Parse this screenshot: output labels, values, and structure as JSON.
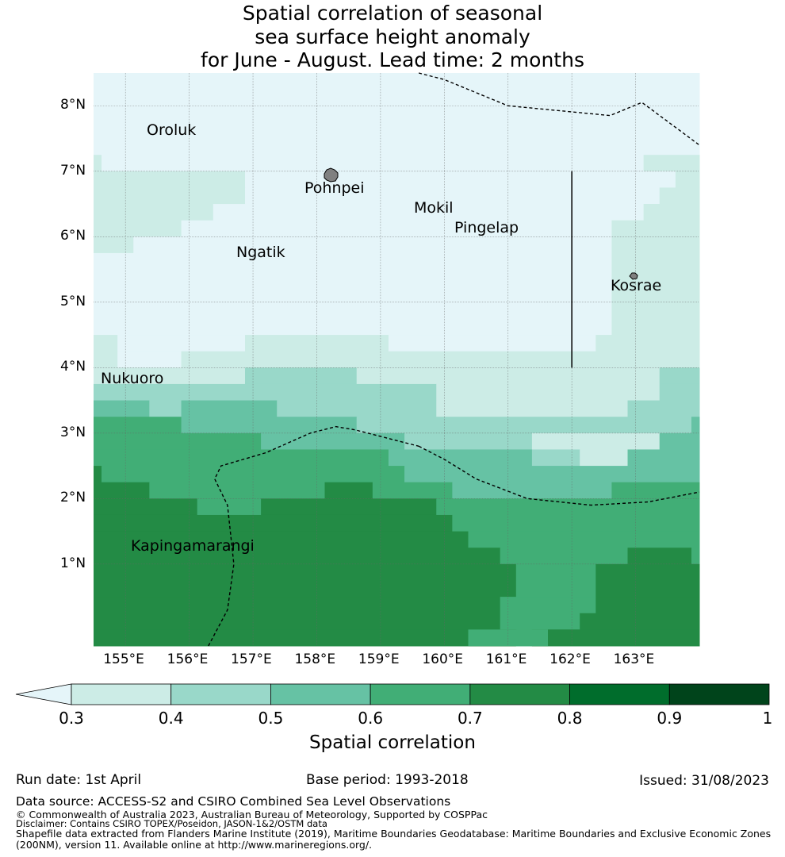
{
  "title": {
    "line1": "Spatial correlation of seasonal",
    "line2": "sea surface height anomaly",
    "line3": "for June - August. Lead time: 2 months"
  },
  "map": {
    "lon_range": [
      154.5,
      164.0
    ],
    "lat_range": [
      -0.25,
      8.5
    ],
    "grid_step_deg": 0.25,
    "x_ticks": [
      "155°E",
      "156°E",
      "157°E",
      "158°E",
      "159°E",
      "160°E",
      "161°E",
      "162°E",
      "163°E"
    ],
    "y_ticks": [
      "8°N",
      "7°N",
      "6°N",
      "5°N",
      "4°N",
      "3°N",
      "2°N",
      "1°N"
    ],
    "places": [
      {
        "name": "Oroluk"
      },
      {
        "name": "Pohnpei"
      },
      {
        "name": "Mokil"
      },
      {
        "name": "Pingelap"
      },
      {
        "name": "Ngatik"
      },
      {
        "name": "Kosrae"
      },
      {
        "name": "Nukuoro"
      },
      {
        "name": "Kapingamarangi"
      }
    ],
    "correlation_rows_description": "row = north edge latitude, segments of [lon_start, lon_end, level]",
    "correlation_rows": [
      {
        "lat": 8.5,
        "segs": [
          [
            154.5,
            164.0,
            0
          ]
        ]
      },
      {
        "lat": 7.25,
        "segs": [
          [
            154.5,
            154.625,
            1
          ],
          [
            154.625,
            163.125,
            0
          ],
          [
            163.125,
            164.0,
            1
          ]
        ]
      },
      {
        "lat": 7.0,
        "segs": [
          [
            154.5,
            156.875,
            1
          ],
          [
            156.875,
            163.625,
            0
          ],
          [
            163.625,
            164.0,
            1
          ]
        ]
      },
      {
        "lat": 6.75,
        "segs": [
          [
            154.5,
            156.875,
            1
          ],
          [
            156.875,
            163.375,
            0
          ],
          [
            163.375,
            164.0,
            1
          ]
        ]
      },
      {
        "lat": 6.5,
        "segs": [
          [
            154.5,
            156.375,
            1
          ],
          [
            156.375,
            163.125,
            0
          ],
          [
            163.125,
            164.0,
            1
          ]
        ]
      },
      {
        "lat": 6.25,
        "segs": [
          [
            154.5,
            155.875,
            1
          ],
          [
            155.875,
            162.625,
            0
          ],
          [
            162.625,
            164.0,
            1
          ]
        ]
      },
      {
        "lat": 6.0,
        "segs": [
          [
            154.5,
            155.125,
            1
          ],
          [
            155.125,
            162.625,
            0
          ],
          [
            162.625,
            164.0,
            1
          ]
        ]
      },
      {
        "lat": 5.75,
        "segs": [
          [
            154.5,
            162.625,
            0
          ],
          [
            162.625,
            164.0,
            1
          ]
        ]
      },
      {
        "lat": 4.5,
        "segs": [
          [
            154.5,
            154.875,
            1
          ],
          [
            154.875,
            156.875,
            0
          ],
          [
            156.875,
            159.125,
            1
          ],
          [
            159.125,
            162.375,
            0
          ],
          [
            162.375,
            164.0,
            1
          ]
        ]
      },
      {
        "lat": 4.25,
        "segs": [
          [
            154.5,
            154.875,
            1
          ],
          [
            154.875,
            155.875,
            0
          ],
          [
            155.875,
            162.375,
            1
          ],
          [
            162.375,
            164.0,
            1
          ]
        ]
      },
      {
        "lat": 4.0,
        "segs": [
          [
            154.5,
            156.875,
            1
          ],
          [
            156.875,
            158.625,
            2
          ],
          [
            158.625,
            163.375,
            1
          ],
          [
            163.375,
            164.0,
            2
          ]
        ]
      },
      {
        "lat": 3.75,
        "segs": [
          [
            154.5,
            159.875,
            2
          ],
          [
            159.875,
            163.375,
            1
          ],
          [
            163.375,
            164.0,
            2
          ]
        ]
      },
      {
        "lat": 3.5,
        "segs": [
          [
            154.5,
            155.375,
            3
          ],
          [
            155.375,
            155.875,
            2
          ],
          [
            155.875,
            157.375,
            3
          ],
          [
            157.375,
            159.875,
            2
          ],
          [
            159.875,
            162.875,
            1
          ],
          [
            162.875,
            164.0,
            2
          ]
        ]
      },
      {
        "lat": 3.25,
        "segs": [
          [
            154.5,
            155.875,
            4
          ],
          [
            155.875,
            158.625,
            3
          ],
          [
            158.625,
            163.875,
            2
          ],
          [
            163.875,
            164.0,
            3
          ]
        ]
      },
      {
        "lat": 3.0,
        "segs": [
          [
            154.5,
            157.125,
            4
          ],
          [
            157.125,
            159.375,
            3
          ],
          [
            159.375,
            161.375,
            2
          ],
          [
            161.375,
            163.375,
            1
          ],
          [
            163.375,
            164.0,
            3
          ]
        ]
      },
      {
        "lat": 2.75,
        "segs": [
          [
            154.5,
            159.125,
            4
          ],
          [
            159.125,
            161.375,
            3
          ],
          [
            161.375,
            162.125,
            2
          ],
          [
            162.125,
            162.875,
            1
          ],
          [
            162.875,
            164.0,
            3
          ]
        ]
      },
      {
        "lat": 2.5,
        "segs": [
          [
            154.5,
            154.625,
            5
          ],
          [
            154.625,
            159.375,
            4
          ],
          [
            159.375,
            160.125,
            3
          ],
          [
            160.125,
            164.0,
            3
          ]
        ]
      },
      {
        "lat": 2.25,
        "segs": [
          [
            154.5,
            155.375,
            5
          ],
          [
            155.375,
            158.125,
            4
          ],
          [
            158.125,
            158.875,
            5
          ],
          [
            158.875,
            160.125,
            4
          ],
          [
            160.125,
            162.625,
            3
          ],
          [
            162.625,
            164.0,
            4
          ]
        ]
      },
      {
        "lat": 2.0,
        "segs": [
          [
            154.5,
            156.125,
            5
          ],
          [
            156.125,
            157.125,
            4
          ],
          [
            157.125,
            159.875,
            5
          ],
          [
            159.875,
            164.0,
            4
          ]
        ]
      },
      {
        "lat": 1.75,
        "segs": [
          [
            154.5,
            160.125,
            5
          ],
          [
            160.125,
            164.0,
            4
          ]
        ]
      },
      {
        "lat": 1.5,
        "segs": [
          [
            154.5,
            160.375,
            5
          ],
          [
            160.375,
            164.0,
            4
          ]
        ]
      },
      {
        "lat": 1.25,
        "segs": [
          [
            154.5,
            160.875,
            5
          ],
          [
            160.875,
            162.875,
            4
          ],
          [
            162.875,
            163.875,
            5
          ],
          [
            163.875,
            164.0,
            4
          ]
        ]
      },
      {
        "lat": 1.0,
        "segs": [
          [
            154.5,
            161.125,
            5
          ],
          [
            161.125,
            162.375,
            4
          ],
          [
            162.375,
            164.0,
            5
          ]
        ]
      },
      {
        "lat": 0.75,
        "segs": [
          [
            154.5,
            161.125,
            5
          ],
          [
            161.125,
            162.375,
            4
          ],
          [
            162.375,
            164.0,
            5
          ]
        ]
      },
      {
        "lat": 0.5,
        "segs": [
          [
            154.5,
            160.875,
            5
          ],
          [
            160.875,
            162.375,
            4
          ],
          [
            162.375,
            164.0,
            5
          ]
        ]
      },
      {
        "lat": 0.25,
        "segs": [
          [
            154.5,
            160.875,
            5
          ],
          [
            160.875,
            162.125,
            4
          ],
          [
            162.125,
            164.0,
            5
          ]
        ]
      },
      {
        "lat": 0.0,
        "segs": [
          [
            154.5,
            161.125,
            5
          ],
          [
            161.125,
            161.375,
            4
          ],
          [
            161.375,
            164.0,
            5
          ]
        ]
      },
      {
        "lat": -0.0001,
        "segs": [
          [
            154.5,
            160.375,
            5
          ],
          [
            160.375,
            161.625,
            4
          ],
          [
            161.625,
            164.0,
            5
          ]
        ]
      }
    ],
    "eez_boundaries": [
      [
        [
          159.6,
          8.5
        ],
        [
          160.0,
          8.4
        ],
        [
          161.0,
          8.0
        ],
        [
          162.6,
          7.85
        ],
        [
          163.1,
          8.05
        ],
        [
          164.0,
          7.4
        ]
      ],
      [
        [
          156.3,
          -0.25
        ],
        [
          156.6,
          0.3
        ],
        [
          156.7,
          1.0
        ],
        [
          156.6,
          1.9
        ],
        [
          156.4,
          2.3
        ],
        [
          156.5,
          2.5
        ],
        [
          157.2,
          2.7
        ],
        [
          157.9,
          3.0
        ],
        [
          158.3,
          3.1
        ],
        [
          158.6,
          3.05
        ],
        [
          159.2,
          2.9
        ],
        [
          159.6,
          2.8
        ]
      ],
      [
        [
          159.6,
          2.8
        ],
        [
          160.0,
          2.6
        ],
        [
          160.5,
          2.3
        ],
        [
          161.3,
          2.0
        ],
        [
          162.3,
          1.9
        ],
        [
          163.2,
          1.95
        ],
        [
          164.0,
          2.1
        ]
      ]
    ],
    "vertical_line": {
      "lon": 162.0,
      "lat": [
        4.0,
        7.0
      ]
    }
  },
  "colorbar": {
    "title": "Spatial correlation",
    "tick_labels": [
      "0.3",
      "0.4",
      "0.5",
      "0.6",
      "0.7",
      "0.8",
      "0.9",
      "1"
    ],
    "bounds": [
      0.3,
      0.4,
      0.5,
      0.6,
      0.7,
      0.8,
      0.9,
      1.0
    ],
    "under_color": "#e5f5f9",
    "colors": [
      "#ccece6",
      "#99d8c9",
      "#66c2a4",
      "#41ae76",
      "#238b45",
      "#006d2c",
      "#00441b"
    ]
  },
  "footer": {
    "run_date": "Run date: 1st April",
    "base_period": "Base period: 1993-2018",
    "issued": "Issued: 31/08/2023",
    "data_source": "Data source: ACCESS-S2 and CSIRO Combined Sea Level Observations",
    "copyright": "© Commonwealth of Australia 2023, Australian Bureau of Meteorology, Supported by COSPPac",
    "disclaimer": "Disclaimer: Contains CSIRO TOPEX/Poseidon, JASON-1&2/OSTM data",
    "shapefile1": "Shapefile data extracted from Flanders Marine Institute (2019), Maritime Boundaries Geodatabase: Maritime Boundaries and Exclusive Economic Zones",
    "shapefile2": "(200NM), version 11. Available online at http://www.marineregions.org/."
  }
}
